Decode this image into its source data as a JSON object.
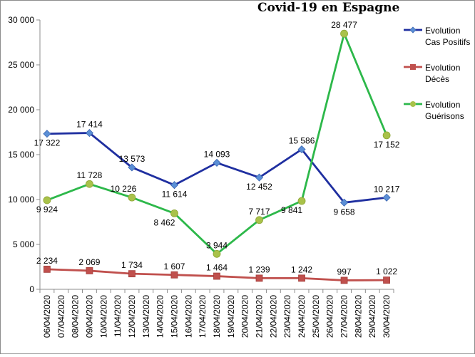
{
  "chart_data": {
    "type": "line",
    "title": "Covid-19 en Espagne",
    "xlabel": "",
    "ylabel": "",
    "ylim": [
      0,
      30000
    ],
    "yticks": [
      0,
      5000,
      10000,
      15000,
      20000,
      25000,
      30000
    ],
    "ytick_labels": [
      "0",
      "5 000",
      "10 000",
      "15 000",
      "20 000",
      "25 000",
      "30 000"
    ],
    "grid": false,
    "legend_position": "right",
    "x": [
      "06/04/2020",
      "07/04/2020",
      "08/04/2020",
      "09/04/2020",
      "10/04/2020",
      "11/04/2020",
      "12/04/2020",
      "13/04/2020",
      "14/04/2020",
      "15/04/2020",
      "16/04/2020",
      "17/04/2020",
      "18/04/2020",
      "19/04/2020",
      "20/04/2020",
      "21/04/2020",
      "22/04/2020",
      "23/04/2020",
      "24/04/2020",
      "25/04/2020",
      "26/04/2020",
      "27/04/2020",
      "28/04/2020",
      "29/04/2020",
      "30/04/2020"
    ],
    "series": [
      {
        "name": "Evolution Cas Positifs",
        "legend_lines": [
          "Evolution",
          "Cas Positifs"
        ],
        "color": "#1f2fa0",
        "marker": "diamond",
        "points": [
          {
            "x": "06/04/2020",
            "y": 17322,
            "label": "17 322",
            "label_pos": "below"
          },
          {
            "x": "09/04/2020",
            "y": 17414,
            "label": "17 414",
            "label_pos": "above"
          },
          {
            "x": "12/04/2020",
            "y": 13573,
            "label": "13 573",
            "label_pos": "above"
          },
          {
            "x": "15/04/2020",
            "y": 11614,
            "label": "11 614",
            "label_pos": "below"
          },
          {
            "x": "18/04/2020",
            "y": 14093,
            "label": "14 093",
            "label_pos": "above"
          },
          {
            "x": "21/04/2020",
            "y": 12452,
            "label": "12 452",
            "label_pos": "below"
          },
          {
            "x": "24/04/2020",
            "y": 15586,
            "label": "15 586",
            "label_pos": "above"
          },
          {
            "x": "27/04/2020",
            "y": 9658,
            "label": "9 658",
            "label_pos": "below"
          },
          {
            "x": "30/04/2020",
            "y": 10217,
            "label": "10 217",
            "label_pos": "above"
          }
        ]
      },
      {
        "name": "Evolution Décès",
        "legend_lines": [
          "Evolution",
          "Décès"
        ],
        "color": "#c0504d",
        "marker": "square",
        "points": [
          {
            "x": "06/04/2020",
            "y": 2234,
            "label": "2 234",
            "label_pos": "above"
          },
          {
            "x": "09/04/2020",
            "y": 2069,
            "label": "2 069",
            "label_pos": "above"
          },
          {
            "x": "12/04/2020",
            "y": 1734,
            "label": "1 734",
            "label_pos": "above"
          },
          {
            "x": "15/04/2020",
            "y": 1607,
            "label": "1 607",
            "label_pos": "above"
          },
          {
            "x": "18/04/2020",
            "y": 1464,
            "label": "1 464",
            "label_pos": "above"
          },
          {
            "x": "21/04/2020",
            "y": 1239,
            "label": "1 239",
            "label_pos": "above"
          },
          {
            "x": "24/04/2020",
            "y": 1242,
            "label": "1 242",
            "label_pos": "above"
          },
          {
            "x": "27/04/2020",
            "y": 997,
            "label": "997",
            "label_pos": "above"
          },
          {
            "x": "30/04/2020",
            "y": 1022,
            "label": "1 022",
            "label_pos": "above"
          }
        ]
      },
      {
        "name": "Evolution Guérisons",
        "legend_lines": [
          "Evolution",
          "Guérisons"
        ],
        "color": "#2db84a",
        "marker_color": "#a9c24a",
        "marker": "circle",
        "points": [
          {
            "x": "06/04/2020",
            "y": 9924,
            "label": "9 924",
            "label_pos": "below"
          },
          {
            "x": "09/04/2020",
            "y": 11728,
            "label": "11 728",
            "label_pos": "above"
          },
          {
            "x": "12/04/2020",
            "y": 10226,
            "label": "10 226",
            "label_pos": "above-left"
          },
          {
            "x": "15/04/2020",
            "y": 8462,
            "label": "8 462",
            "label_pos": "below-left"
          },
          {
            "x": "18/04/2020",
            "y": 3944,
            "label": "3 944",
            "label_pos": "above"
          },
          {
            "x": "21/04/2020",
            "y": 7717,
            "label": "7 717",
            "label_pos": "above"
          },
          {
            "x": "24/04/2020",
            "y": 9841,
            "label": "9 841",
            "label_pos": "below-left"
          },
          {
            "x": "27/04/2020",
            "y": 28477,
            "label": "28 477",
            "label_pos": "above"
          },
          {
            "x": "30/04/2020",
            "y": 17152,
            "label": "17 152",
            "label_pos": "below"
          }
        ]
      }
    ]
  }
}
